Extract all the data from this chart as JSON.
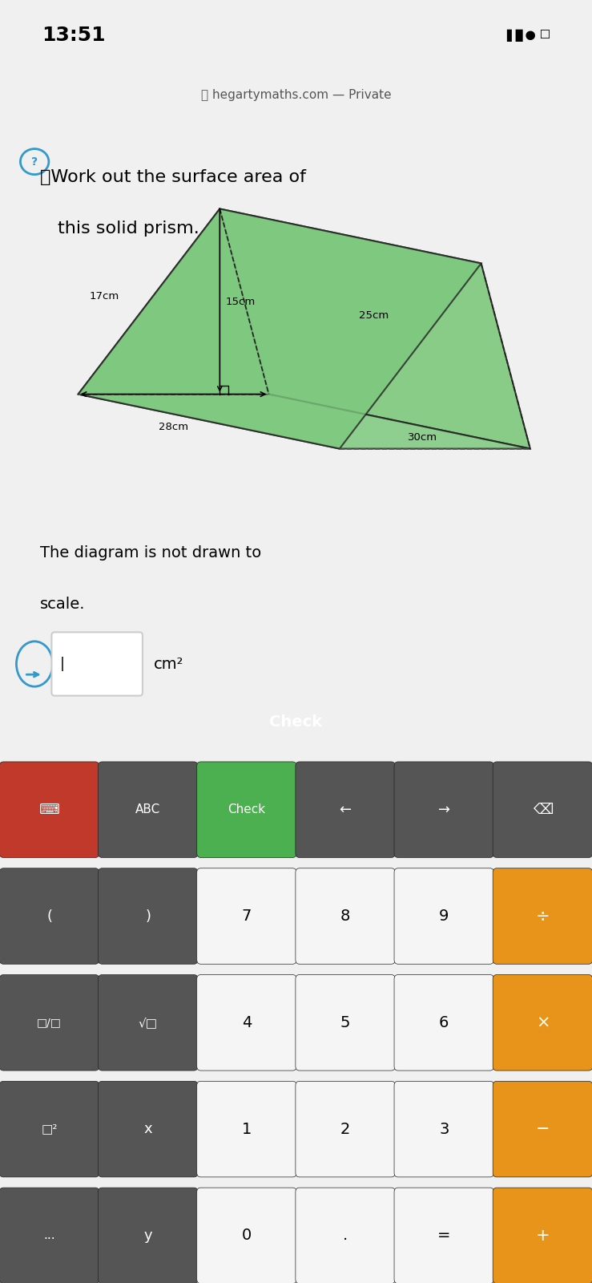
{
  "status_bar_time": "13:51",
  "browser_url": "hegartymaths.com — Private",
  "question_text_line1": "❓Work out the surface area of",
  "question_text_line2": "this solid prism.",
  "note_line1": "The diagram is not drawn to",
  "note_line2": "scale.",
  "unit_label": "cm²",
  "bg_color": "#f0f0f0",
  "card_bg": "#ffffff",
  "prism_fill": "#7dc87d",
  "prism_fill_alpha": 0.85,
  "prism_stroke": "#222222",
  "dashed_stroke": "#555555",
  "dim_labels": [
    "17cm",
    "15cm",
    "25cm",
    "30cm",
    "28cm"
  ],
  "keyboard_bg": "#3a3a3a",
  "keyboard_top_bar_bg": "#2e2e2e",
  "key_light": "#f5f5f5",
  "key_dark": "#555555",
  "key_orange": "#e8941a",
  "key_red": "#c0392b",
  "key_green": "#4caf50",
  "check_button_bg": "#4caf50",
  "check_bar_bg": "#4caf50"
}
